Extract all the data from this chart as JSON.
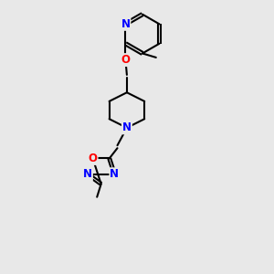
{
  "bg_color": "#e8e8e8",
  "bond_color": "#000000",
  "atom_colors": {
    "N": "#0000ff",
    "O": "#ff0000",
    "C": "#000000"
  },
  "line_width": 1.5,
  "font_size": 8.5,
  "figsize": [
    3.0,
    3.0
  ],
  "dpi": 100,
  "xlim": [
    0.5,
    5.5
  ],
  "ylim": [
    0.2,
    10.2
  ]
}
